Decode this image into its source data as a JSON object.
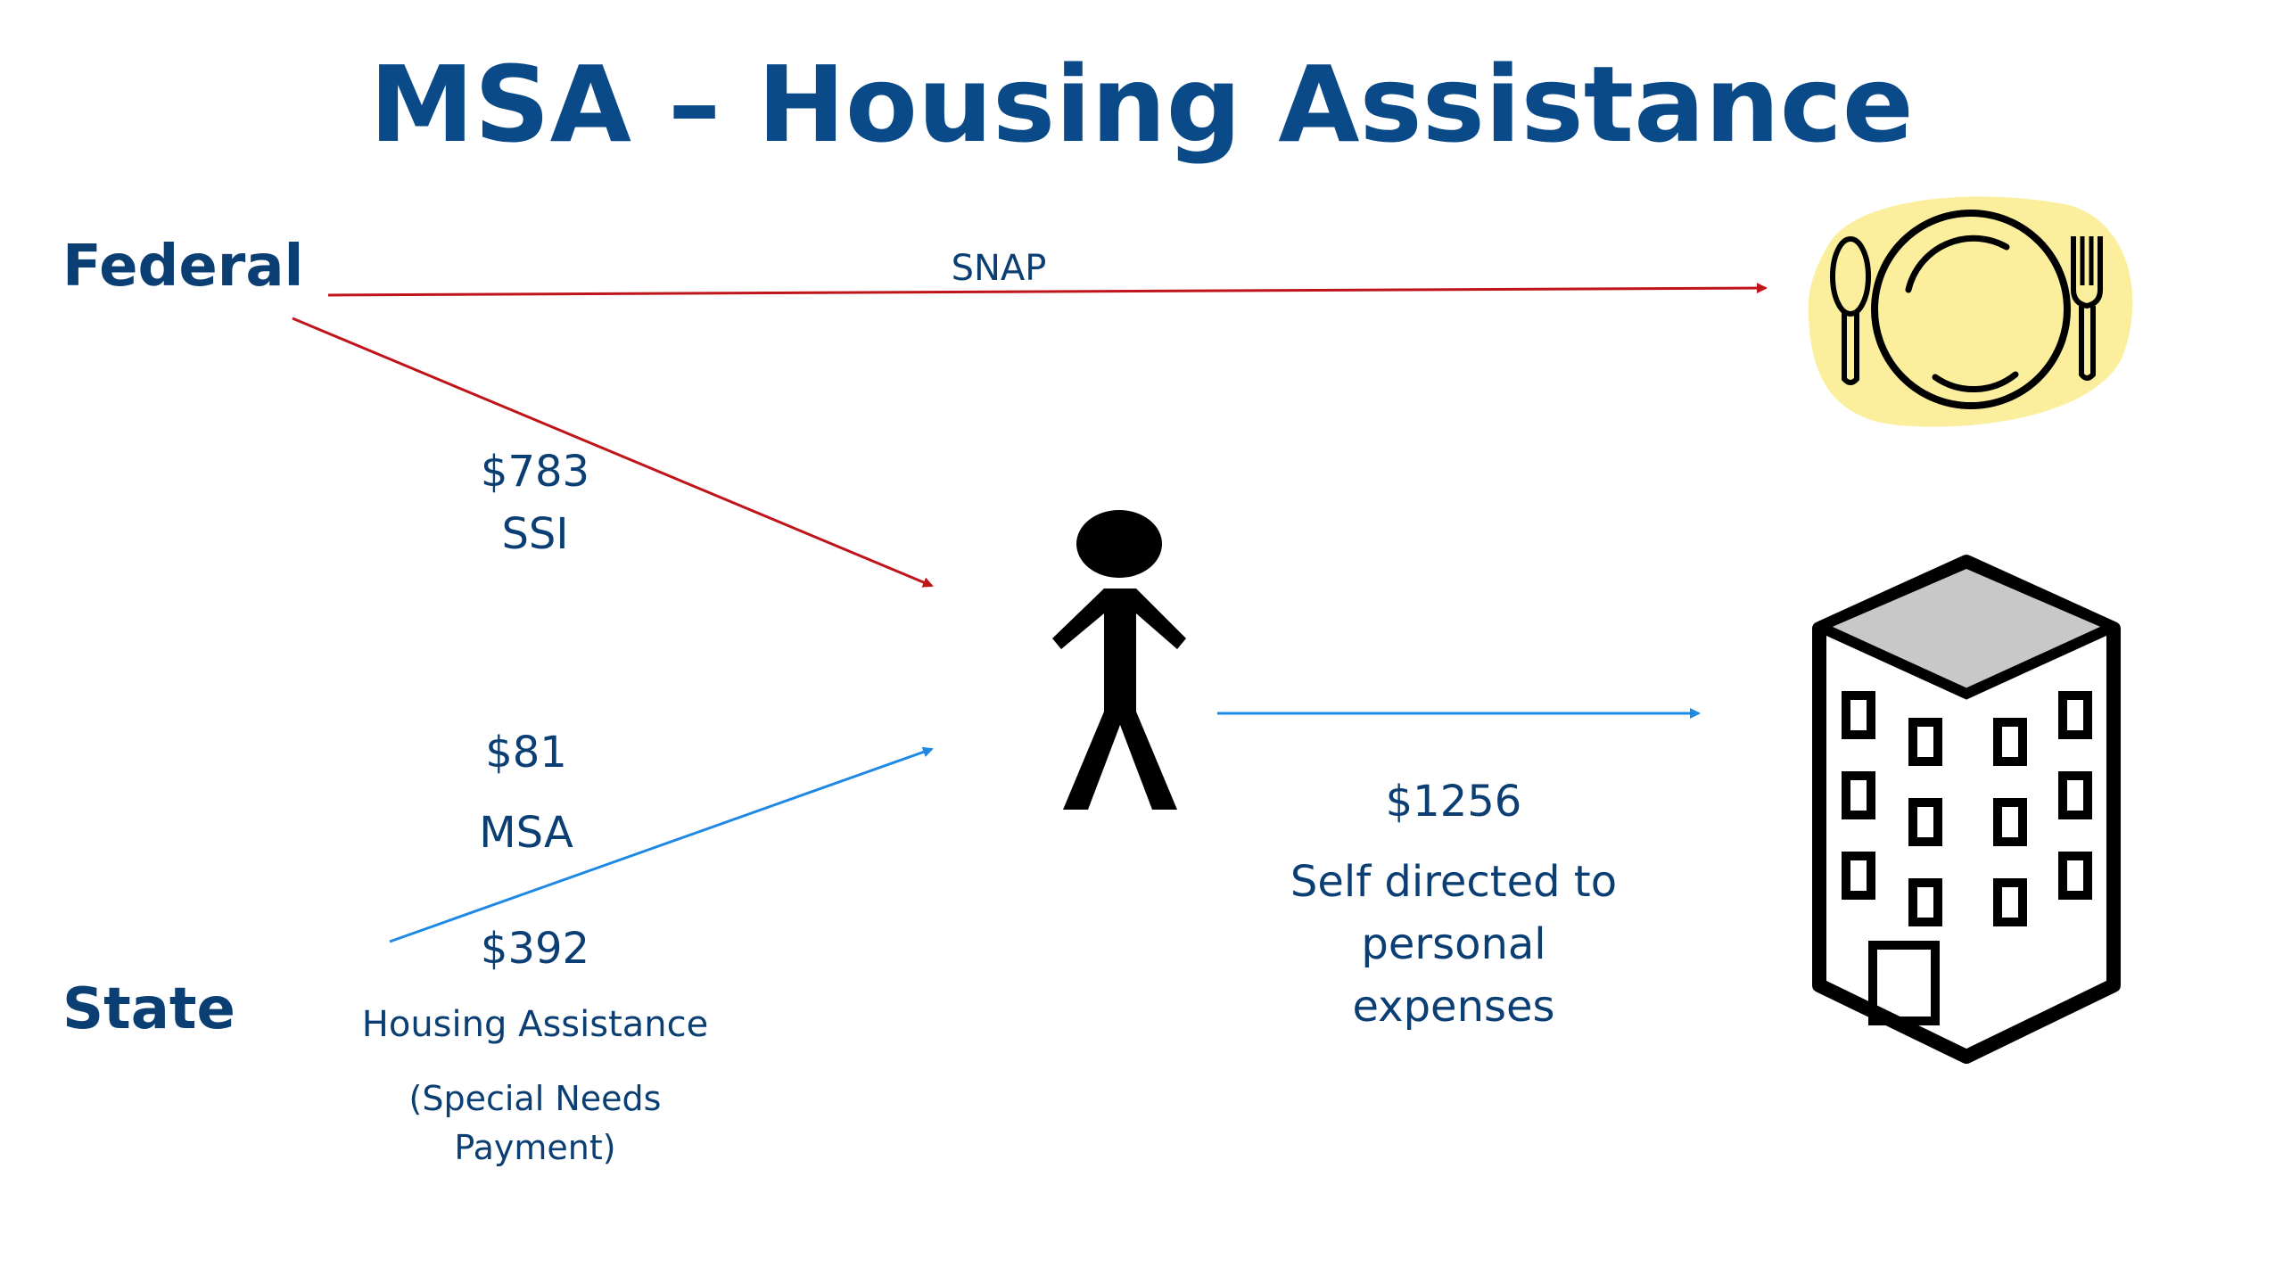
{
  "title": "MSA – Housing Assistance",
  "levels": {
    "federal": "Federal",
    "state": "State"
  },
  "flows": {
    "snap": {
      "label": "SNAP"
    },
    "ssi": {
      "amount": "$783",
      "label": "SSI"
    },
    "msa": {
      "amount": "$81",
      "label": "MSA"
    },
    "housing": {
      "amount": "$392",
      "label": "Housing Assistance",
      "note_line1": "(Special Needs",
      "note_line2": "Payment)"
    },
    "personal": {
      "amount": "$1256",
      "line1": "Self directed to",
      "line2": "personal",
      "line3": "expenses"
    }
  },
  "icons": [
    "plate-icon",
    "person-icon",
    "building-icon"
  ],
  "colors": {
    "title": "#0b4a89",
    "federal_arrow": "#c0141b",
    "state_arrow": "#1e88e5",
    "text": "#0b3f74",
    "plate": "#fbef9e"
  }
}
